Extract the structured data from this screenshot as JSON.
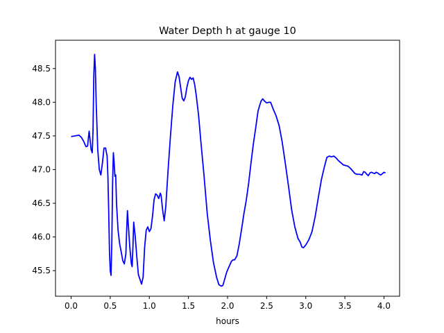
{
  "chart_data": {
    "type": "line",
    "title": "Water Depth h at gauge 10",
    "xlabel": "hours",
    "ylabel": "",
    "xlim": [
      -0.2,
      4.2
    ],
    "ylim": [
      45.12,
      48.92
    ],
    "xticks": [
      0.0,
      0.5,
      1.0,
      1.5,
      2.0,
      2.5,
      3.0,
      3.5,
      4.0
    ],
    "xtick_labels": [
      "0.0",
      "0.5",
      "1.0",
      "1.5",
      "2.0",
      "2.5",
      "3.0",
      "3.5",
      "4.0"
    ],
    "yticks": [
      45.5,
      46.0,
      46.5,
      47.0,
      47.5,
      48.0,
      48.5
    ],
    "ytick_labels": [
      "45.5",
      "46.0",
      "46.5",
      "47.0",
      "47.5",
      "48.0",
      "48.5"
    ],
    "grid": false,
    "legend": "none",
    "series": [
      {
        "color": "#0000ff",
        "points": [
          [
            0.0,
            47.49
          ],
          [
            0.05,
            47.5
          ],
          [
            0.1,
            47.51
          ],
          [
            0.13,
            47.48
          ],
          [
            0.16,
            47.42
          ],
          [
            0.19,
            47.34
          ],
          [
            0.21,
            47.35
          ],
          [
            0.23,
            47.57
          ],
          [
            0.255,
            47.3
          ],
          [
            0.27,
            47.25
          ],
          [
            0.28,
            47.6
          ],
          [
            0.29,
            48.4
          ],
          [
            0.3,
            48.71
          ],
          [
            0.31,
            48.5
          ],
          [
            0.32,
            48.0
          ],
          [
            0.34,
            47.3
          ],
          [
            0.36,
            47.0
          ],
          [
            0.38,
            46.92
          ],
          [
            0.4,
            47.1
          ],
          [
            0.42,
            47.32
          ],
          [
            0.44,
            47.32
          ],
          [
            0.46,
            47.2
          ],
          [
            0.47,
            46.9
          ],
          [
            0.48,
            46.4
          ],
          [
            0.49,
            45.8
          ],
          [
            0.5,
            45.5
          ],
          [
            0.51,
            45.43
          ],
          [
            0.52,
            45.9
          ],
          [
            0.53,
            46.8
          ],
          [
            0.54,
            47.25
          ],
          [
            0.55,
            47.1
          ],
          [
            0.56,
            46.9
          ],
          [
            0.57,
            46.92
          ],
          [
            0.58,
            46.5
          ],
          [
            0.6,
            46.1
          ],
          [
            0.62,
            45.9
          ],
          [
            0.64,
            45.78
          ],
          [
            0.66,
            45.65
          ],
          [
            0.68,
            45.6
          ],
          [
            0.7,
            45.75
          ],
          [
            0.71,
            46.1
          ],
          [
            0.72,
            46.39
          ],
          [
            0.73,
            46.2
          ],
          [
            0.75,
            45.85
          ],
          [
            0.77,
            45.6
          ],
          [
            0.78,
            45.56
          ],
          [
            0.79,
            45.85
          ],
          [
            0.8,
            46.22
          ],
          [
            0.82,
            46.0
          ],
          [
            0.84,
            45.7
          ],
          [
            0.86,
            45.44
          ],
          [
            0.88,
            45.37
          ],
          [
            0.9,
            45.3
          ],
          [
            0.92,
            45.4
          ],
          [
            0.94,
            45.85
          ],
          [
            0.96,
            46.1
          ],
          [
            0.98,
            46.15
          ],
          [
            1.0,
            46.08
          ],
          [
            1.02,
            46.12
          ],
          [
            1.04,
            46.3
          ],
          [
            1.06,
            46.55
          ],
          [
            1.08,
            46.64
          ],
          [
            1.1,
            46.62
          ],
          [
            1.12,
            46.57
          ],
          [
            1.14,
            46.65
          ],
          [
            1.15,
            46.62
          ],
          [
            1.17,
            46.4
          ],
          [
            1.19,
            46.24
          ],
          [
            1.21,
            46.45
          ],
          [
            1.24,
            47.0
          ],
          [
            1.27,
            47.5
          ],
          [
            1.3,
            47.95
          ],
          [
            1.33,
            48.3
          ],
          [
            1.36,
            48.45
          ],
          [
            1.38,
            48.38
          ],
          [
            1.4,
            48.22
          ],
          [
            1.42,
            48.06
          ],
          [
            1.44,
            48.02
          ],
          [
            1.46,
            48.08
          ],
          [
            1.48,
            48.22
          ],
          [
            1.5,
            48.32
          ],
          [
            1.52,
            48.37
          ],
          [
            1.54,
            48.34
          ],
          [
            1.56,
            48.36
          ],
          [
            1.58,
            48.26
          ],
          [
            1.6,
            48.1
          ],
          [
            1.63,
            47.8
          ],
          [
            1.66,
            47.4
          ],
          [
            1.7,
            46.9
          ],
          [
            1.74,
            46.35
          ],
          [
            1.78,
            45.95
          ],
          [
            1.82,
            45.62
          ],
          [
            1.86,
            45.4
          ],
          [
            1.89,
            45.29
          ],
          [
            1.92,
            45.27
          ],
          [
            1.94,
            45.28
          ],
          [
            1.96,
            45.36
          ],
          [
            1.99,
            45.48
          ],
          [
            2.02,
            45.56
          ],
          [
            2.05,
            45.64
          ],
          [
            2.07,
            45.66
          ],
          [
            2.09,
            45.66
          ],
          [
            2.12,
            45.72
          ],
          [
            2.15,
            45.9
          ],
          [
            2.18,
            46.12
          ],
          [
            2.21,
            46.35
          ],
          [
            2.24,
            46.55
          ],
          [
            2.27,
            46.8
          ],
          [
            2.3,
            47.1
          ],
          [
            2.33,
            47.38
          ],
          [
            2.36,
            47.62
          ],
          [
            2.39,
            47.87
          ],
          [
            2.41,
            47.95
          ],
          [
            2.43,
            48.02
          ],
          [
            2.45,
            48.05
          ],
          [
            2.47,
            48.02
          ],
          [
            2.5,
            47.99
          ],
          [
            2.53,
            48.0
          ],
          [
            2.55,
            48.0
          ],
          [
            2.57,
            47.94
          ],
          [
            2.59,
            47.88
          ],
          [
            2.62,
            47.8
          ],
          [
            2.66,
            47.65
          ],
          [
            2.7,
            47.4
          ],
          [
            2.74,
            47.08
          ],
          [
            2.78,
            46.75
          ],
          [
            2.82,
            46.4
          ],
          [
            2.86,
            46.15
          ],
          [
            2.9,
            45.98
          ],
          [
            2.93,
            45.92
          ],
          [
            2.95,
            45.85
          ],
          [
            2.97,
            45.84
          ],
          [
            3.0,
            45.88
          ],
          [
            3.04,
            45.96
          ],
          [
            3.08,
            46.08
          ],
          [
            3.12,
            46.3
          ],
          [
            3.16,
            46.58
          ],
          [
            3.2,
            46.85
          ],
          [
            3.24,
            47.05
          ],
          [
            3.27,
            47.18
          ],
          [
            3.3,
            47.2
          ],
          [
            3.33,
            47.19
          ],
          [
            3.36,
            47.2
          ],
          [
            3.39,
            47.17
          ],
          [
            3.42,
            47.13
          ],
          [
            3.45,
            47.1
          ],
          [
            3.48,
            47.07
          ],
          [
            3.51,
            47.06
          ],
          [
            3.54,
            47.05
          ],
          [
            3.57,
            47.02
          ],
          [
            3.6,
            46.98
          ],
          [
            3.63,
            46.94
          ],
          [
            3.66,
            46.93
          ],
          [
            3.69,
            46.93
          ],
          [
            3.72,
            46.92
          ],
          [
            3.74,
            46.97
          ],
          [
            3.76,
            46.96
          ],
          [
            3.78,
            46.93
          ],
          [
            3.8,
            46.91
          ],
          [
            3.82,
            46.95
          ],
          [
            3.84,
            46.96
          ],
          [
            3.86,
            46.95
          ],
          [
            3.88,
            46.94
          ],
          [
            3.9,
            46.96
          ],
          [
            3.92,
            46.95
          ],
          [
            3.94,
            46.93
          ],
          [
            3.96,
            46.92
          ],
          [
            3.98,
            46.94
          ],
          [
            4.0,
            46.96
          ],
          [
            4.02,
            46.95
          ]
        ]
      }
    ]
  }
}
